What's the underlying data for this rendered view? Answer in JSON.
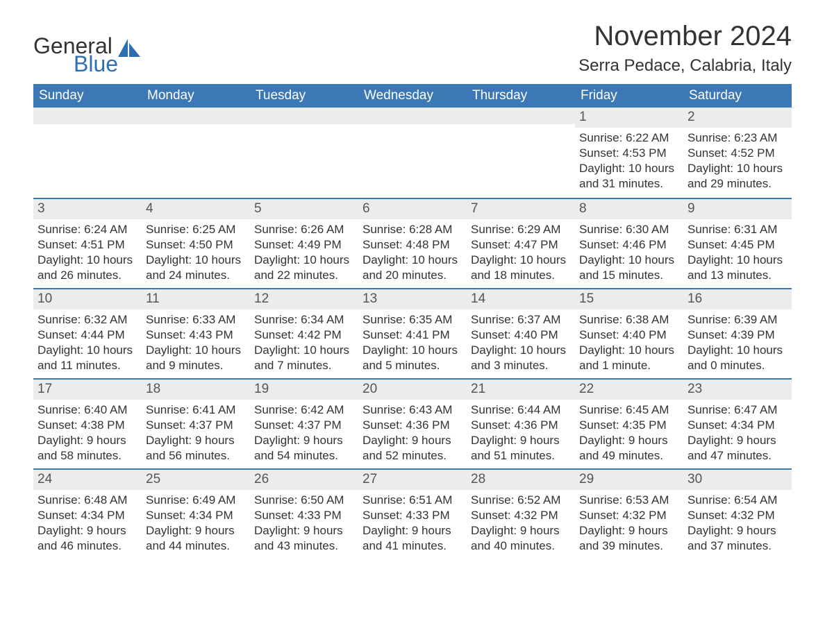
{
  "logo": {
    "word1": "General",
    "word2": "Blue"
  },
  "title": "November 2024",
  "location": "Serra Pedace, Calabria, Italy",
  "style": {
    "header_bg": "#3b78b5",
    "header_fg": "#ffffff",
    "daynum_bg": "#ececec",
    "row_border": "#3b78b5",
    "page_bg": "#ffffff",
    "text_color": "#333333",
    "logo_blue": "#2f6fb0",
    "title_fontsize": 40,
    "location_fontsize": 24,
    "header_fontsize": 19,
    "daynum_fontsize": 19,
    "body_fontsize": 17
  },
  "weekdays": [
    "Sunday",
    "Monday",
    "Tuesday",
    "Wednesday",
    "Thursday",
    "Friday",
    "Saturday"
  ],
  "first_weekday_index": 5,
  "days": [
    {
      "n": 1,
      "sunrise": "6:22 AM",
      "sunset": "4:53 PM",
      "daylight": "10 hours and 31 minutes."
    },
    {
      "n": 2,
      "sunrise": "6:23 AM",
      "sunset": "4:52 PM",
      "daylight": "10 hours and 29 minutes."
    },
    {
      "n": 3,
      "sunrise": "6:24 AM",
      "sunset": "4:51 PM",
      "daylight": "10 hours and 26 minutes."
    },
    {
      "n": 4,
      "sunrise": "6:25 AM",
      "sunset": "4:50 PM",
      "daylight": "10 hours and 24 minutes."
    },
    {
      "n": 5,
      "sunrise": "6:26 AM",
      "sunset": "4:49 PM",
      "daylight": "10 hours and 22 minutes."
    },
    {
      "n": 6,
      "sunrise": "6:28 AM",
      "sunset": "4:48 PM",
      "daylight": "10 hours and 20 minutes."
    },
    {
      "n": 7,
      "sunrise": "6:29 AM",
      "sunset": "4:47 PM",
      "daylight": "10 hours and 18 minutes."
    },
    {
      "n": 8,
      "sunrise": "6:30 AM",
      "sunset": "4:46 PM",
      "daylight": "10 hours and 15 minutes."
    },
    {
      "n": 9,
      "sunrise": "6:31 AM",
      "sunset": "4:45 PM",
      "daylight": "10 hours and 13 minutes."
    },
    {
      "n": 10,
      "sunrise": "6:32 AM",
      "sunset": "4:44 PM",
      "daylight": "10 hours and 11 minutes."
    },
    {
      "n": 11,
      "sunrise": "6:33 AM",
      "sunset": "4:43 PM",
      "daylight": "10 hours and 9 minutes."
    },
    {
      "n": 12,
      "sunrise": "6:34 AM",
      "sunset": "4:42 PM",
      "daylight": "10 hours and 7 minutes."
    },
    {
      "n": 13,
      "sunrise": "6:35 AM",
      "sunset": "4:41 PM",
      "daylight": "10 hours and 5 minutes."
    },
    {
      "n": 14,
      "sunrise": "6:37 AM",
      "sunset": "4:40 PM",
      "daylight": "10 hours and 3 minutes."
    },
    {
      "n": 15,
      "sunrise": "6:38 AM",
      "sunset": "4:40 PM",
      "daylight": "10 hours and 1 minute."
    },
    {
      "n": 16,
      "sunrise": "6:39 AM",
      "sunset": "4:39 PM",
      "daylight": "10 hours and 0 minutes."
    },
    {
      "n": 17,
      "sunrise": "6:40 AM",
      "sunset": "4:38 PM",
      "daylight": "9 hours and 58 minutes."
    },
    {
      "n": 18,
      "sunrise": "6:41 AM",
      "sunset": "4:37 PM",
      "daylight": "9 hours and 56 minutes."
    },
    {
      "n": 19,
      "sunrise": "6:42 AM",
      "sunset": "4:37 PM",
      "daylight": "9 hours and 54 minutes."
    },
    {
      "n": 20,
      "sunrise": "6:43 AM",
      "sunset": "4:36 PM",
      "daylight": "9 hours and 52 minutes."
    },
    {
      "n": 21,
      "sunrise": "6:44 AM",
      "sunset": "4:36 PM",
      "daylight": "9 hours and 51 minutes."
    },
    {
      "n": 22,
      "sunrise": "6:45 AM",
      "sunset": "4:35 PM",
      "daylight": "9 hours and 49 minutes."
    },
    {
      "n": 23,
      "sunrise": "6:47 AM",
      "sunset": "4:34 PM",
      "daylight": "9 hours and 47 minutes."
    },
    {
      "n": 24,
      "sunrise": "6:48 AM",
      "sunset": "4:34 PM",
      "daylight": "9 hours and 46 minutes."
    },
    {
      "n": 25,
      "sunrise": "6:49 AM",
      "sunset": "4:34 PM",
      "daylight": "9 hours and 44 minutes."
    },
    {
      "n": 26,
      "sunrise": "6:50 AM",
      "sunset": "4:33 PM",
      "daylight": "9 hours and 43 minutes."
    },
    {
      "n": 27,
      "sunrise": "6:51 AM",
      "sunset": "4:33 PM",
      "daylight": "9 hours and 41 minutes."
    },
    {
      "n": 28,
      "sunrise": "6:52 AM",
      "sunset": "4:32 PM",
      "daylight": "9 hours and 40 minutes."
    },
    {
      "n": 29,
      "sunrise": "6:53 AM",
      "sunset": "4:32 PM",
      "daylight": "9 hours and 39 minutes."
    },
    {
      "n": 30,
      "sunrise": "6:54 AM",
      "sunset": "4:32 PM",
      "daylight": "9 hours and 37 minutes."
    }
  ]
}
